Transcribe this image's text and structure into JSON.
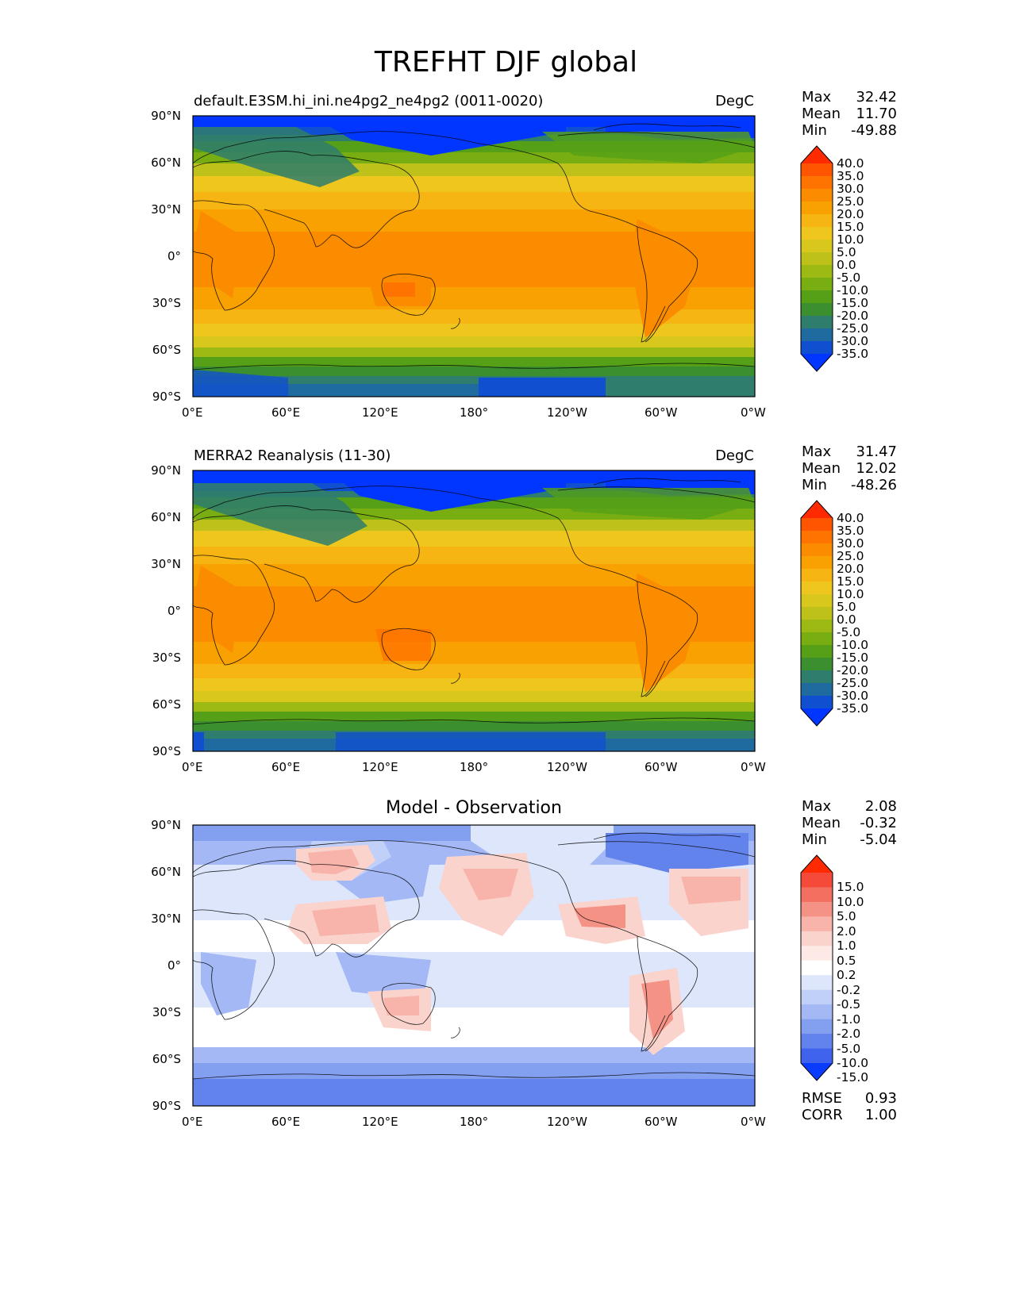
{
  "title": "TREFHT DJF global",
  "lat_ticks": [
    "90°N",
    "60°N",
    "30°N",
    "0°",
    "30°S",
    "60°S",
    "90°S"
  ],
  "lon_ticks": [
    "0°E",
    "60°E",
    "120°E",
    "180°",
    "120°W",
    "60°W",
    "0°W"
  ],
  "panels": [
    {
      "id": "model",
      "left_title": "default.E3SM.hi_ini.ne4pg2_ne4pg2 (0011-0020)",
      "center_title": "",
      "units": "DegC",
      "stats": {
        "max_label": "Max",
        "max": "32.42",
        "mean_label": "Mean",
        "mean": "11.70",
        "min_label": "Min",
        "min": "-49.88"
      },
      "levels": [
        "40.0",
        "35.0",
        "30.0",
        "25.0",
        "20.0",
        "15.0",
        "10.0",
        "5.0",
        "0.0",
        "-5.0",
        "-10.0",
        "-15.0",
        "-20.0",
        "-25.0",
        "-30.0",
        "-35.0"
      ],
      "colors": [
        "#ff2a00",
        "#ff5500",
        "#ff7300",
        "#fb8c00",
        "#f9a100",
        "#f7b513",
        "#efc61e",
        "#d8c71c",
        "#bdc11a",
        "#9dba14",
        "#79ae13",
        "#55a017",
        "#3c8f2e",
        "#2f7d6c",
        "#1f6a9e",
        "#1050d0",
        "#0036ff"
      ]
    },
    {
      "id": "obs",
      "left_title": "MERRA2 Reanalysis (11-30)",
      "center_title": "",
      "units": "DegC",
      "stats": {
        "max_label": "Max",
        "max": "31.47",
        "mean_label": "Mean",
        "mean": "12.02",
        "min_label": "Min",
        "min": "-48.26"
      },
      "levels": [
        "40.0",
        "35.0",
        "30.0",
        "25.0",
        "20.0",
        "15.0",
        "10.0",
        "5.0",
        "0.0",
        "-5.0",
        "-10.0",
        "-15.0",
        "-20.0",
        "-25.0",
        "-30.0",
        "-35.0"
      ],
      "colors": [
        "#ff2a00",
        "#ff5500",
        "#ff7300",
        "#fb8c00",
        "#f9a100",
        "#f7b513",
        "#efc61e",
        "#d8c71c",
        "#bdc11a",
        "#9dba14",
        "#79ae13",
        "#55a017",
        "#3c8f2e",
        "#2f7d6c",
        "#1f6a9e",
        "#1050d0",
        "#0036ff"
      ]
    },
    {
      "id": "diff",
      "left_title": "",
      "center_title": "Model - Observation",
      "units": "",
      "stats": {
        "max_label": "Max",
        "max": "2.08",
        "mean_label": "Mean",
        "mean": "-0.32",
        "min_label": "Min",
        "min": "-5.04"
      },
      "levels": [
        "15.0",
        "10.0",
        "5.0",
        "2.0",
        "1.0",
        "0.5",
        "0.2",
        "-0.2",
        "-0.5",
        "-1.0",
        "-2.0",
        "-5.0",
        "-10.0",
        "-15.0"
      ],
      "colors": [
        "#ff2a00",
        "#f54a3a",
        "#f36f5f",
        "#f59286",
        "#f8b4ab",
        "#fbd3cd",
        "#fde9e6",
        "#ffffff",
        "#dde6fb",
        "#c1d0f8",
        "#a3b8f4",
        "#839ff0",
        "#6383ec",
        "#3f63ed",
        "#0a3cff"
      ],
      "rmse_label": "RMSE",
      "rmse": "0.93",
      "corr_label": "CORR",
      "corr": "1.00"
    }
  ]
}
